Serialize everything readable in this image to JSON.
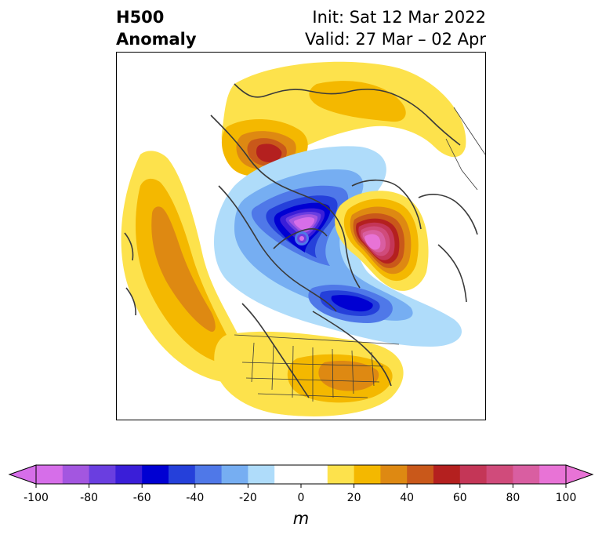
{
  "title": {
    "field": "H500",
    "subfield": "Anomaly",
    "init": "Init: Sat 12 Mar 2022",
    "valid": "Valid: 27 Mar – 02 Apr"
  },
  "colorbar": {
    "unit": "m",
    "ticks": [
      "-100",
      "-80",
      "-60",
      "-40",
      "-20",
      "0",
      "20",
      "40",
      "60",
      "80",
      "100"
    ],
    "min": -100,
    "max": 100,
    "step": 10,
    "colors": [
      "#d66ee9",
      "#a356e0",
      "#6a3ee0",
      "#3a1ed8",
      "#0000d2",
      "#2540da",
      "#4f78e8",
      "#76aef2",
      "#afdcfa",
      "#ffffff",
      "#ffffff",
      "#fde24c",
      "#f4b800",
      "#de8912",
      "#c9581a",
      "#b4201f",
      "#c43657",
      "#d04b7b",
      "#d95ea1",
      "#e873d6"
    ]
  },
  "map": {
    "projection": "polar-stereographic",
    "region": "Northern Hemisphere / North America",
    "colors": {
      "coast": "#3a3a3a",
      "border": "#3a3a3a"
    }
  }
}
